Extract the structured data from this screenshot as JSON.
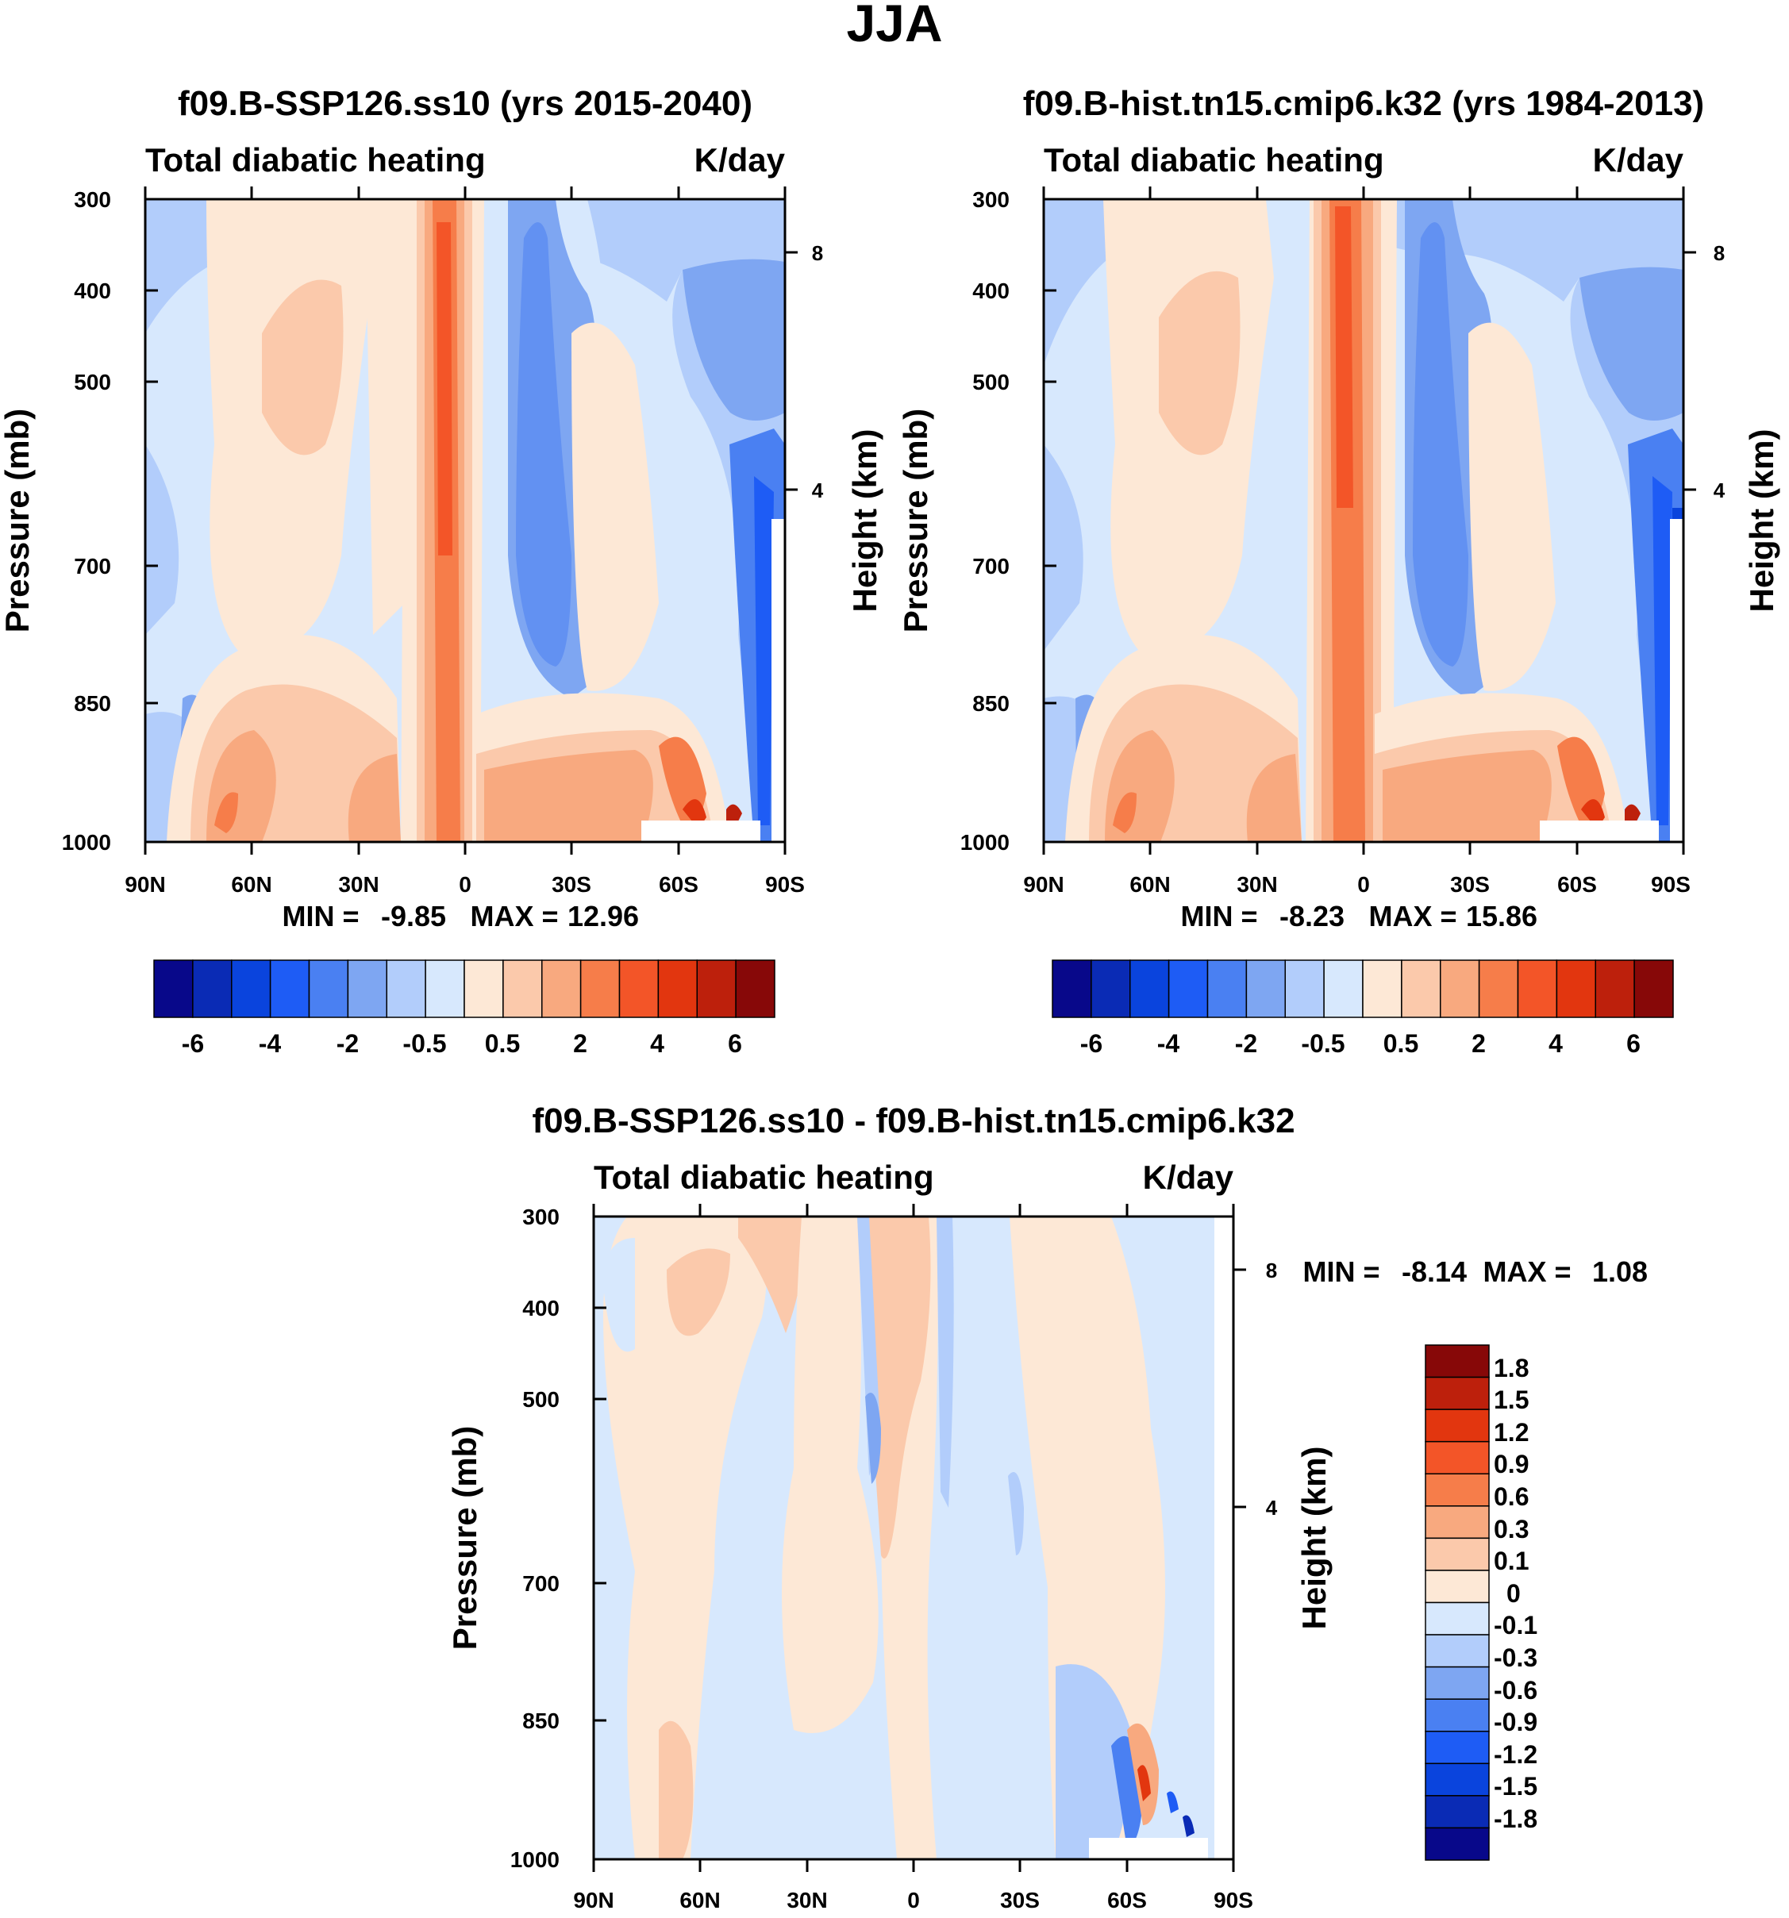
{
  "figure": {
    "title": "JJA"
  },
  "colors": {
    "full": [
      "#08088a",
      "#0a2bb5",
      "#0a44dd",
      "#1e5cf5",
      "#4a80f2",
      "#7ea6f2",
      "#b2cdfb",
      "#d7e8fd",
      "#fde8d6",
      "#fbc9ab",
      "#f8a97f",
      "#f67d4a",
      "#f35528",
      "#e2360f",
      "#bd200c",
      "#870808"
    ],
    "diff": [
      "#08088a",
      "#0a2bb5",
      "#0a44dd",
      "#1e5cf5",
      "#4a80f2",
      "#7ea6f2",
      "#b2cdfb",
      "#d7e8fd",
      "#fde8d6",
      "#fbc9ab",
      "#f8a97f",
      "#f67d4a",
      "#f35528",
      "#e2360f",
      "#bd200c",
      "#870808"
    ]
  },
  "chart_data": [
    {
      "type": "heatmap",
      "title": "f09.B-SSP126.ss10 (yrs 2015-2040)",
      "left_label": "Total diabatic heating",
      "right_label": "K/day",
      "xlabel": "",
      "ylabel": "Pressure (mb)",
      "ylabel_right": "Height (km)",
      "x_ticks": [
        "90N",
        "60N",
        "30N",
        "0",
        "30S",
        "60S",
        "90S"
      ],
      "y_ticks": [
        "300",
        "400",
        "500",
        "700",
        "850",
        "1000"
      ],
      "height_ticks": [
        "8",
        "4"
      ],
      "min_label": "MIN =",
      "min": "-9.85",
      "max_label": "MAX =",
      "max": "12.96",
      "colorbar_labels": [
        "-6",
        "-4",
        "-2",
        "-0.5",
        "0.5",
        "2",
        "4",
        "6"
      ],
      "ylim": [
        1000,
        300
      ]
    },
    {
      "type": "heatmap",
      "title": "f09.B-hist.tn15.cmip6.k32 (yrs 1984-2013)",
      "left_label": "Total diabatic heating",
      "right_label": "K/day",
      "xlabel": "",
      "ylabel": "Pressure (mb)",
      "ylabel_right": "Height (km)",
      "x_ticks": [
        "90N",
        "60N",
        "30N",
        "0",
        "30S",
        "60S",
        "90S"
      ],
      "y_ticks": [
        "300",
        "400",
        "500",
        "700",
        "850",
        "1000"
      ],
      "height_ticks": [
        "8",
        "4"
      ],
      "min_label": "MIN =",
      "min": "-8.23",
      "max_label": "MAX =",
      "max": "15.86",
      "colorbar_labels": [
        "-6",
        "-4",
        "-2",
        "-0.5",
        "0.5",
        "2",
        "4",
        "6"
      ],
      "ylim": [
        1000,
        300
      ]
    },
    {
      "type": "heatmap",
      "title": "f09.B-SSP126.ss10 - f09.B-hist.tn15.cmip6.k32",
      "left_label": "Total diabatic heating",
      "right_label": "K/day",
      "xlabel": "",
      "ylabel": "Pressure (mb)",
      "ylabel_right": "Height (km)",
      "x_ticks": [
        "90N",
        "60N",
        "30N",
        "0",
        "30S",
        "60S",
        "90S"
      ],
      "y_ticks": [
        "300",
        "400",
        "500",
        "700",
        "850",
        "1000"
      ],
      "height_ticks": [
        "8",
        "4"
      ],
      "min_label": "MIN =",
      "min": "-8.14",
      "max_label": "MAX =",
      "max": "1.08",
      "colorbar_labels": [
        "1.8",
        "1.5",
        "1.2",
        "0.9",
        "0.6",
        "0.3",
        "0.1",
        "0",
        "-0.1",
        "-0.3",
        "-0.6",
        "-0.9",
        "-1.2",
        "-1.5",
        "-1.8"
      ],
      "ylim": [
        1000,
        300
      ]
    }
  ]
}
